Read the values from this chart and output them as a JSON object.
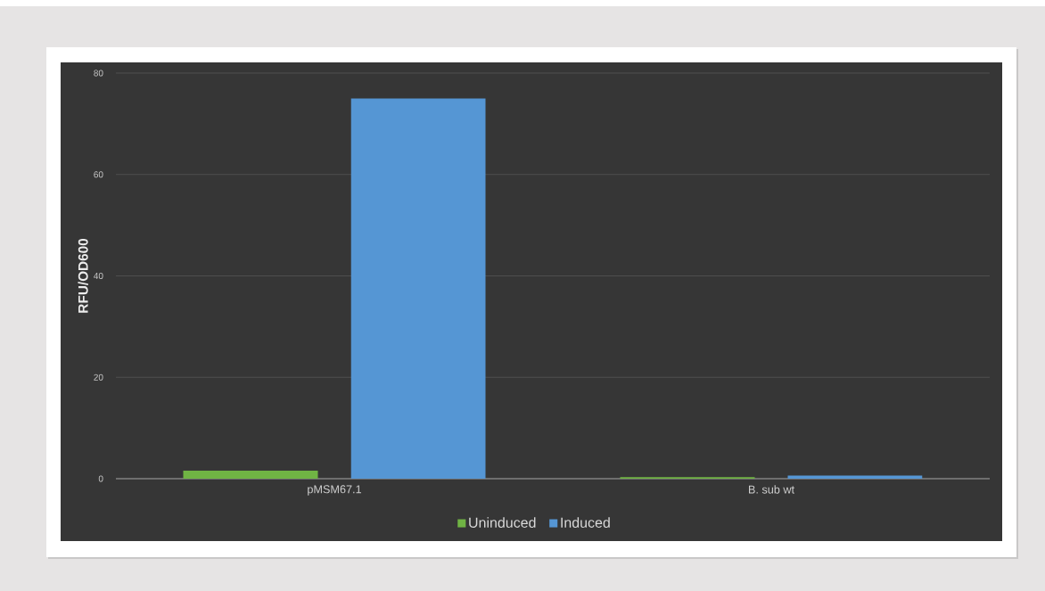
{
  "chart_data": {
    "type": "bar",
    "categories": [
      "pMSM67.1",
      "B. sub wt"
    ],
    "series": [
      {
        "name": "Uninduced",
        "color": "#70b444",
        "values": [
          1.6,
          0.3
        ]
      },
      {
        "name": "Induced",
        "color": "#5596d4",
        "values": [
          75,
          0.6
        ]
      }
    ],
    "ylabel": "RFU/OD600",
    "ylim": [
      0,
      80
    ],
    "yticks": [
      0,
      20,
      40,
      60,
      80
    ],
    "grid": "y",
    "legend": "bottom"
  }
}
